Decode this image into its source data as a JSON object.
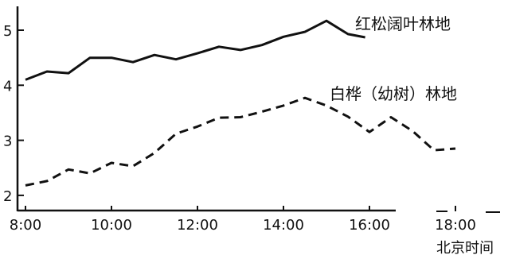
{
  "chart_data": {
    "type": "line",
    "xlabel": "北京时间",
    "ylabel": "",
    "grid": false,
    "x_ticks": [
      "8:00",
      "10:00",
      "12:00",
      "14:00",
      "16:00",
      "18:00"
    ],
    "x_tick_hours": [
      8,
      10,
      12,
      14,
      16,
      18
    ],
    "y_ticks": [
      2,
      3,
      4,
      5
    ],
    "xlim": [
      7.9,
      19.0
    ],
    "ylim": [
      1.8,
      5.4
    ],
    "series": [
      {
        "name": "红松阔叶林地",
        "line_style": "solid",
        "color": "#111111",
        "x": [
          8.0,
          8.5,
          9.0,
          9.5,
          10.0,
          10.5,
          11.0,
          11.5,
          12.0,
          12.5,
          13.0,
          13.5,
          14.0,
          14.5,
          15.0,
          15.5,
          15.9
        ],
        "y": [
          4.1,
          4.25,
          4.22,
          4.5,
          4.5,
          4.42,
          4.55,
          4.47,
          4.58,
          4.7,
          4.64,
          4.73,
          4.88,
          4.97,
          5.17,
          4.93,
          4.87
        ]
      },
      {
        "name": "白桦（幼树）林地",
        "line_style": "dashed",
        "color": "#111111",
        "x": [
          8.0,
          8.5,
          9.0,
          9.5,
          10.0,
          10.5,
          11.0,
          11.5,
          12.0,
          12.5,
          13.0,
          13.5,
          14.0,
          14.5,
          15.0,
          15.5,
          16.0,
          16.5,
          17.0,
          17.5,
          18.0
        ],
        "y": [
          2.18,
          2.26,
          2.47,
          2.4,
          2.59,
          2.53,
          2.77,
          3.12,
          3.25,
          3.41,
          3.42,
          3.52,
          3.63,
          3.77,
          3.63,
          3.43,
          3.15,
          3.42,
          3.17,
          2.82,
          2.85
        ]
      }
    ]
  }
}
